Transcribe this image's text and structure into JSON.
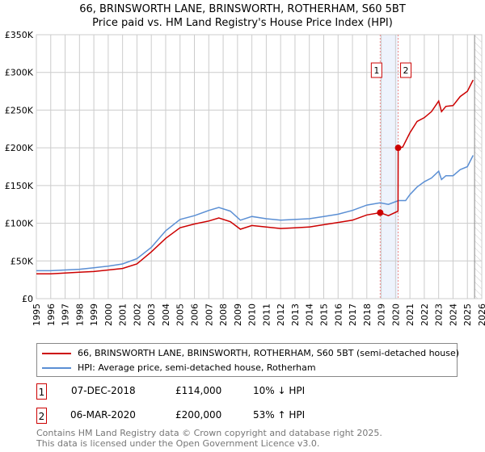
{
  "title": "66, BRINSWORTH LANE, BRINSWORTH, ROTHERHAM, S60 5BT",
  "subtitle": "Price paid vs. HM Land Registry's House Price Index (HPI)",
  "chart_data": {
    "type": "line",
    "title": "66, BRINSWORTH LANE, BRINSWORTH, ROTHERHAM, S60 5BT",
    "subtitle": "Price paid vs. HM Land Registry's House Price Index (HPI)",
    "xlim": [
      1995,
      2026
    ],
    "ylim": [
      0,
      350000
    ],
    "x_ticks": [
      "1995",
      "1996",
      "1997",
      "1998",
      "1999",
      "2000",
      "2001",
      "2002",
      "2003",
      "2004",
      "2005",
      "2006",
      "2007",
      "2008",
      "2009",
      "2010",
      "2011",
      "2012",
      "2013",
      "2014",
      "2015",
      "2016",
      "2017",
      "2018",
      "2019",
      "2020",
      "2021",
      "2022",
      "2023",
      "2024",
      "2025",
      "2026"
    ],
    "y_ticks": [
      {
        "v": 0,
        "label": "£0"
      },
      {
        "v": 50000,
        "label": "£50K"
      },
      {
        "v": 100000,
        "label": "£100K"
      },
      {
        "v": 150000,
        "label": "£150K"
      },
      {
        "v": 200000,
        "label": "£200K"
      },
      {
        "v": 250000,
        "label": "£250K"
      },
      {
        "v": 300000,
        "label": "£300K"
      },
      {
        "v": 350000,
        "label": "£350K"
      }
    ],
    "grid": true,
    "series": [
      {
        "name": "66, BRINSWORTH LANE, BRINSWORTH, ROTHERHAM, S60 5BT (semi-detached house)",
        "color": "#cc0000",
        "x": [
          1995,
          1996,
          1997,
          1998,
          1999,
          2000,
          2001,
          2002,
          2003,
          2004,
          2005,
          2006,
          2007,
          2007.7,
          2008.5,
          2009.2,
          2010,
          2011,
          2012,
          2013,
          2014,
          2015,
          2016,
          2017,
          2018,
          2018.93,
          2019.5,
          2020.17,
          2020.18,
          2020.5,
          2021,
          2021.5,
          2022,
          2022.5,
          2023,
          2023.2,
          2023.5,
          2024,
          2024.5,
          2025,
          2025.4
        ],
        "y": [
          33000,
          33000,
          34000,
          35000,
          36000,
          38000,
          40000,
          46000,
          62000,
          80000,
          94000,
          99000,
          103000,
          107000,
          102000,
          92000,
          97000,
          95000,
          93000,
          94000,
          95000,
          98000,
          101000,
          104000,
          111000,
          114000,
          110000,
          116000,
          200000,
          201000,
          220000,
          235000,
          240000,
          248000,
          262000,
          248000,
          255000,
          256000,
          268000,
          275000,
          290000
        ]
      },
      {
        "name": "HPI: Average price, semi-detached house, Rotherham",
        "color": "#5b8fd4",
        "x": [
          1995,
          1996,
          1997,
          1998,
          1999,
          2000,
          2001,
          2002,
          2003,
          2004,
          2005,
          2006,
          2007,
          2007.7,
          2008.5,
          2009.2,
          2010,
          2011,
          2012,
          2013,
          2014,
          2015,
          2016,
          2017,
          2018,
          2018.93,
          2019.5,
          2020.2,
          2020.7,
          2021,
          2021.5,
          2022,
          2022.5,
          2023,
          2023.2,
          2023.5,
          2024,
          2024.5,
          2025,
          2025.4
        ],
        "y": [
          37000,
          37000,
          38000,
          39000,
          41000,
          43000,
          46000,
          53000,
          68000,
          90000,
          105000,
          110000,
          117000,
          121000,
          116000,
          104000,
          109000,
          106000,
          104000,
          105000,
          106000,
          109000,
          112000,
          117000,
          124000,
          127000,
          125000,
          130000,
          130000,
          138000,
          148000,
          155000,
          160000,
          169000,
          158000,
          163000,
          163000,
          171000,
          175000,
          190000
        ]
      }
    ],
    "markers": [
      {
        "label": "1",
        "x": 2018.93,
        "y": 114000
      },
      {
        "label": "2",
        "x": 2020.18,
        "y": 200000
      }
    ],
    "future_from": 2025.5
  },
  "legend": {
    "property": "66, BRINSWORTH LANE, BRINSWORTH, ROTHERHAM, S60 5BT (semi-detached house)",
    "hpi": "HPI: Average price, semi-detached house, Rotherham"
  },
  "transactions": [
    {
      "num": "1",
      "date": "07-DEC-2018",
      "price": "£114,000",
      "hpi": "10% ↓ HPI"
    },
    {
      "num": "2",
      "date": "06-MAR-2020",
      "price": "£200,000",
      "hpi": "53% ↑ HPI"
    }
  ],
  "footer": {
    "line1": "Contains HM Land Registry data © Crown copyright and database right 2025.",
    "line2": "This data is licensed under the Open Government Licence v3.0."
  }
}
